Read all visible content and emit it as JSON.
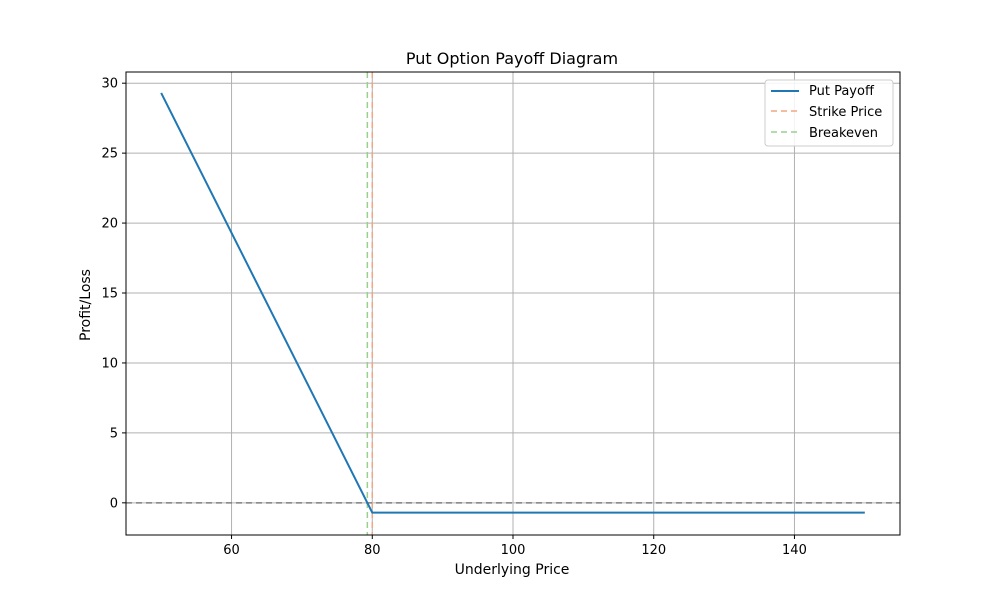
{
  "chart_data": {
    "type": "line",
    "title": "Put Option Payoff Diagram",
    "xlabel": "Underlying Price",
    "ylabel": "Profit/Loss",
    "xlim": [
      45,
      155
    ],
    "ylim": [
      -2.3,
      30.8
    ],
    "xticks": [
      60,
      80,
      100,
      120,
      140
    ],
    "yticks": [
      0,
      5,
      10,
      15,
      20,
      25,
      30
    ],
    "grid": true,
    "legend_position": "top-right",
    "series": [
      {
        "name": "Put Payoff",
        "color": "#1f77b4",
        "style": "solid",
        "x": [
          50,
          80,
          150
        ],
        "y": [
          29.3,
          -0.7,
          -0.7
        ]
      }
    ],
    "reference_lines": [
      {
        "name": "Strike Price",
        "orientation": "vertical",
        "value": 80,
        "color": "#f4a582",
        "style": "dashed"
      },
      {
        "name": "Breakeven",
        "orientation": "vertical",
        "value": 79.3,
        "color": "#98d08e",
        "style": "dashed"
      },
      {
        "name": "",
        "orientation": "horizontal",
        "value": 0,
        "color": "#808080",
        "style": "dashed"
      }
    ]
  }
}
